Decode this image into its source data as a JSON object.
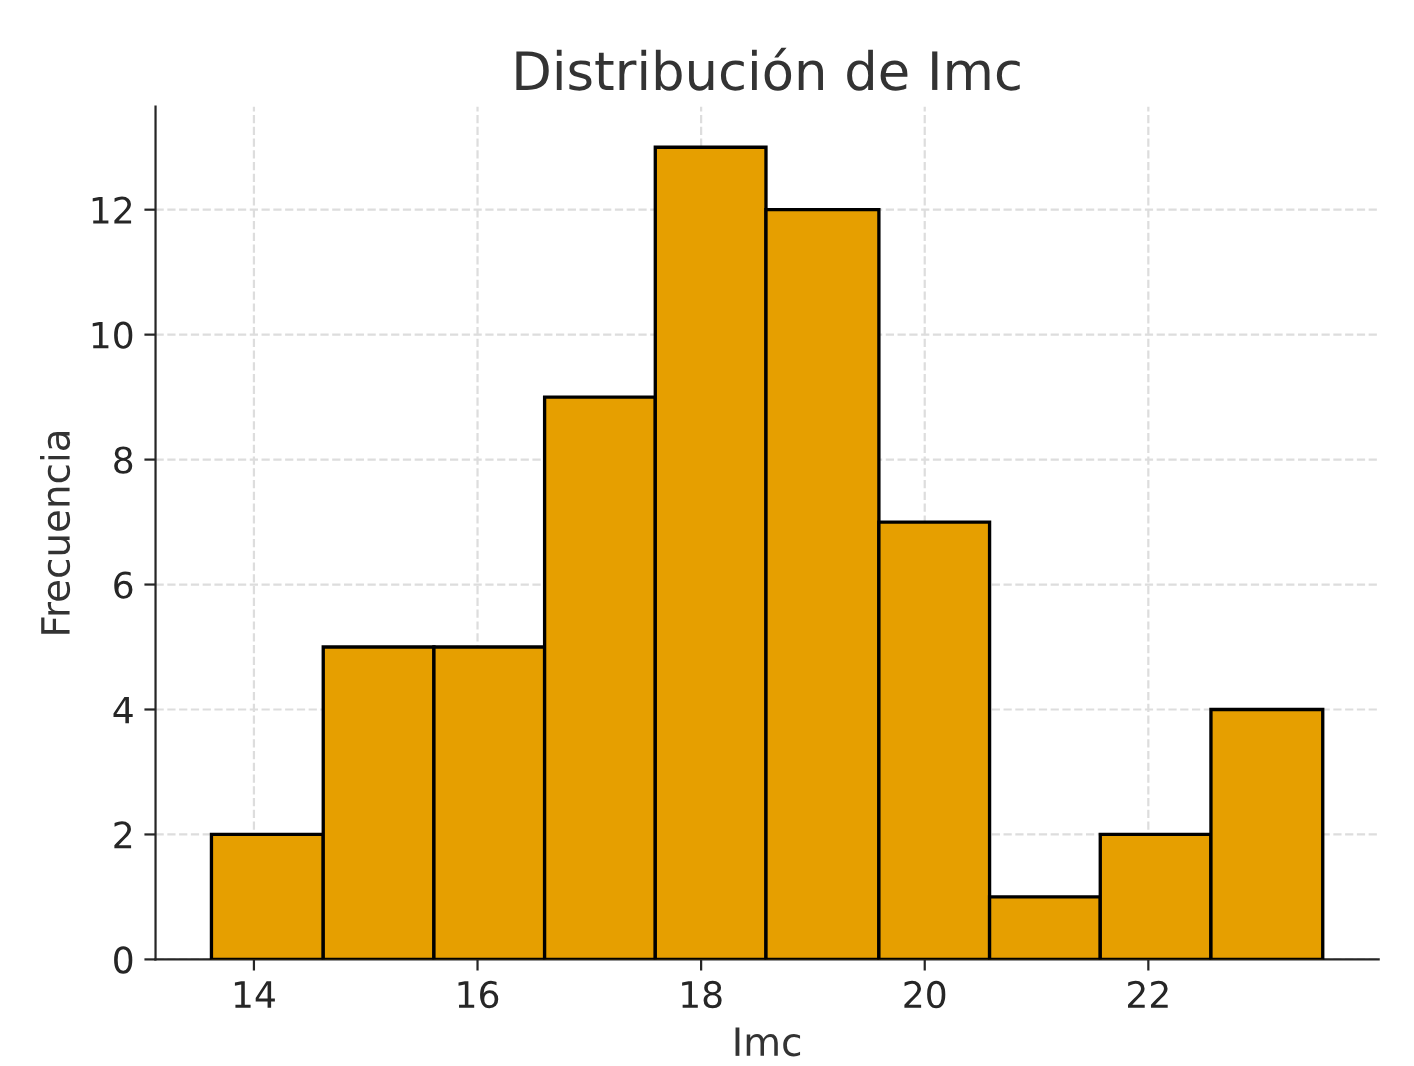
{
  "chart_data": {
    "type": "histogram",
    "title": "Distribución de Imc",
    "xlabel": "Imc",
    "ylabel": "Frecuencia",
    "bins": [
      13.62,
      14.62,
      15.61,
      16.6,
      17.59,
      18.58,
      19.59,
      20.58,
      21.57,
      22.56,
      23.56
    ],
    "values": [
      2,
      5,
      5,
      9,
      13,
      12,
      7,
      1,
      2,
      4
    ],
    "color": "#e69f00",
    "xlim": [
      13.12,
      24.06
    ],
    "xticks": [
      14,
      16,
      18,
      20,
      22
    ],
    "ylim": [
      0,
      13.65
    ],
    "yticks": [
      0,
      2,
      4,
      6,
      8,
      10,
      12
    ],
    "grid": true
  }
}
